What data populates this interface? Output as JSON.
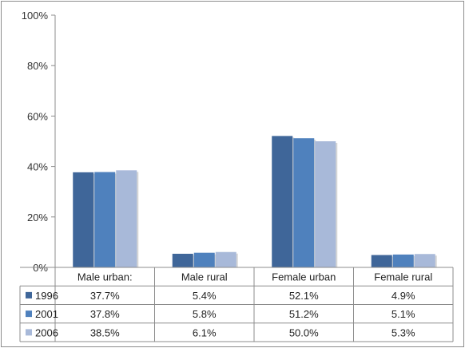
{
  "chart_data": {
    "type": "bar",
    "categories": [
      "Male urban:",
      "Male rural",
      "Female urban",
      "Female rural"
    ],
    "series": [
      {
        "name": "1996",
        "values": [
          37.7,
          5.4,
          52.1,
          4.9
        ],
        "labels": [
          "37.7%",
          "5.4%",
          "52.1%",
          "4.9%"
        ],
        "color": "#3f6699"
      },
      {
        "name": "2001",
        "values": [
          37.8,
          5.8,
          51.2,
          5.1
        ],
        "labels": [
          "37.8%",
          "5.8%",
          "51.2%",
          "5.1%"
        ],
        "color": "#4f81bd"
      },
      {
        "name": "2006",
        "values": [
          38.5,
          6.1,
          50.0,
          5.3
        ],
        "labels": [
          "38.5%",
          "6.1%",
          "50.0%",
          "5.3%"
        ],
        "color": "#a8b9d9"
      }
    ],
    "y_ticks": [
      "0%",
      "20%",
      "40%",
      "60%",
      "80%",
      "100%"
    ],
    "ylim": [
      0,
      100
    ],
    "legend": "data-table",
    "grid": false
  }
}
